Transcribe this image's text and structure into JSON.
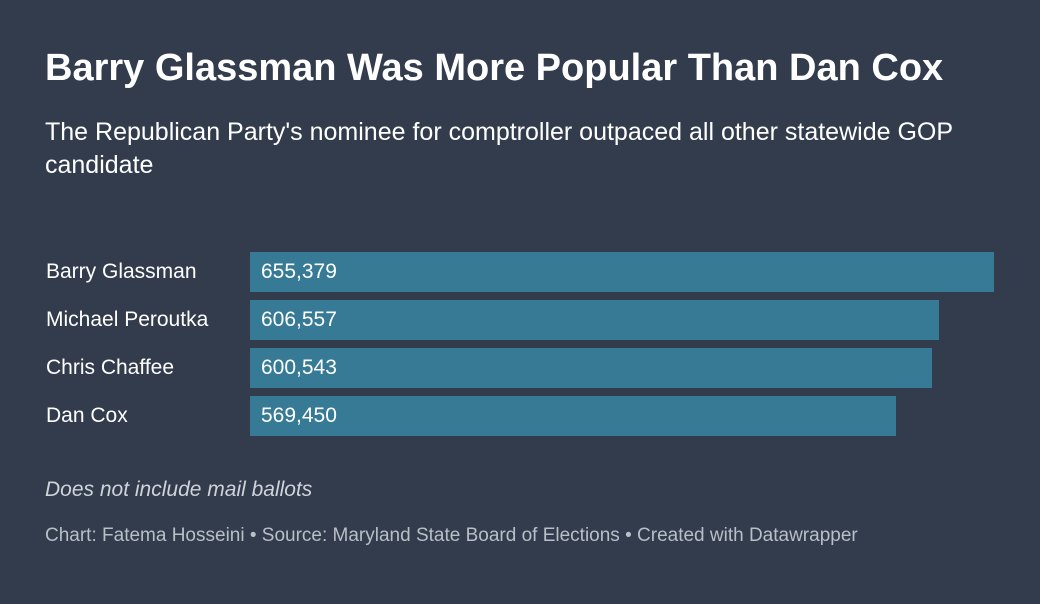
{
  "chart_data": {
    "type": "bar",
    "orientation": "horizontal",
    "title": "Barry Glassman Was More Popular Than Dan Cox",
    "subtitle": "The Republican Party's nominee for comptroller outpaced all other statewide GOP candidate",
    "categories": [
      "Barry Glassman",
      "Michael Peroutka",
      "Chris Chaffee",
      "Dan Cox"
    ],
    "values": [
      655379,
      606557,
      600543,
      569450
    ],
    "value_labels": [
      "655,379",
      "606,557",
      "600,543",
      "569,450"
    ],
    "xlim": [
      0,
      655379
    ],
    "bar_color": "#377a96",
    "grid": false,
    "legend": "none",
    "note": "Does not include mail ballots",
    "footer": "Chart: Fatema Hosseini • Source: Maryland State Board of Elections • Created with Datawrapper"
  },
  "colors": {
    "background": "#323c4d",
    "bar": "#377a96",
    "text": "#ffffff",
    "muted": "#b9bec7"
  }
}
